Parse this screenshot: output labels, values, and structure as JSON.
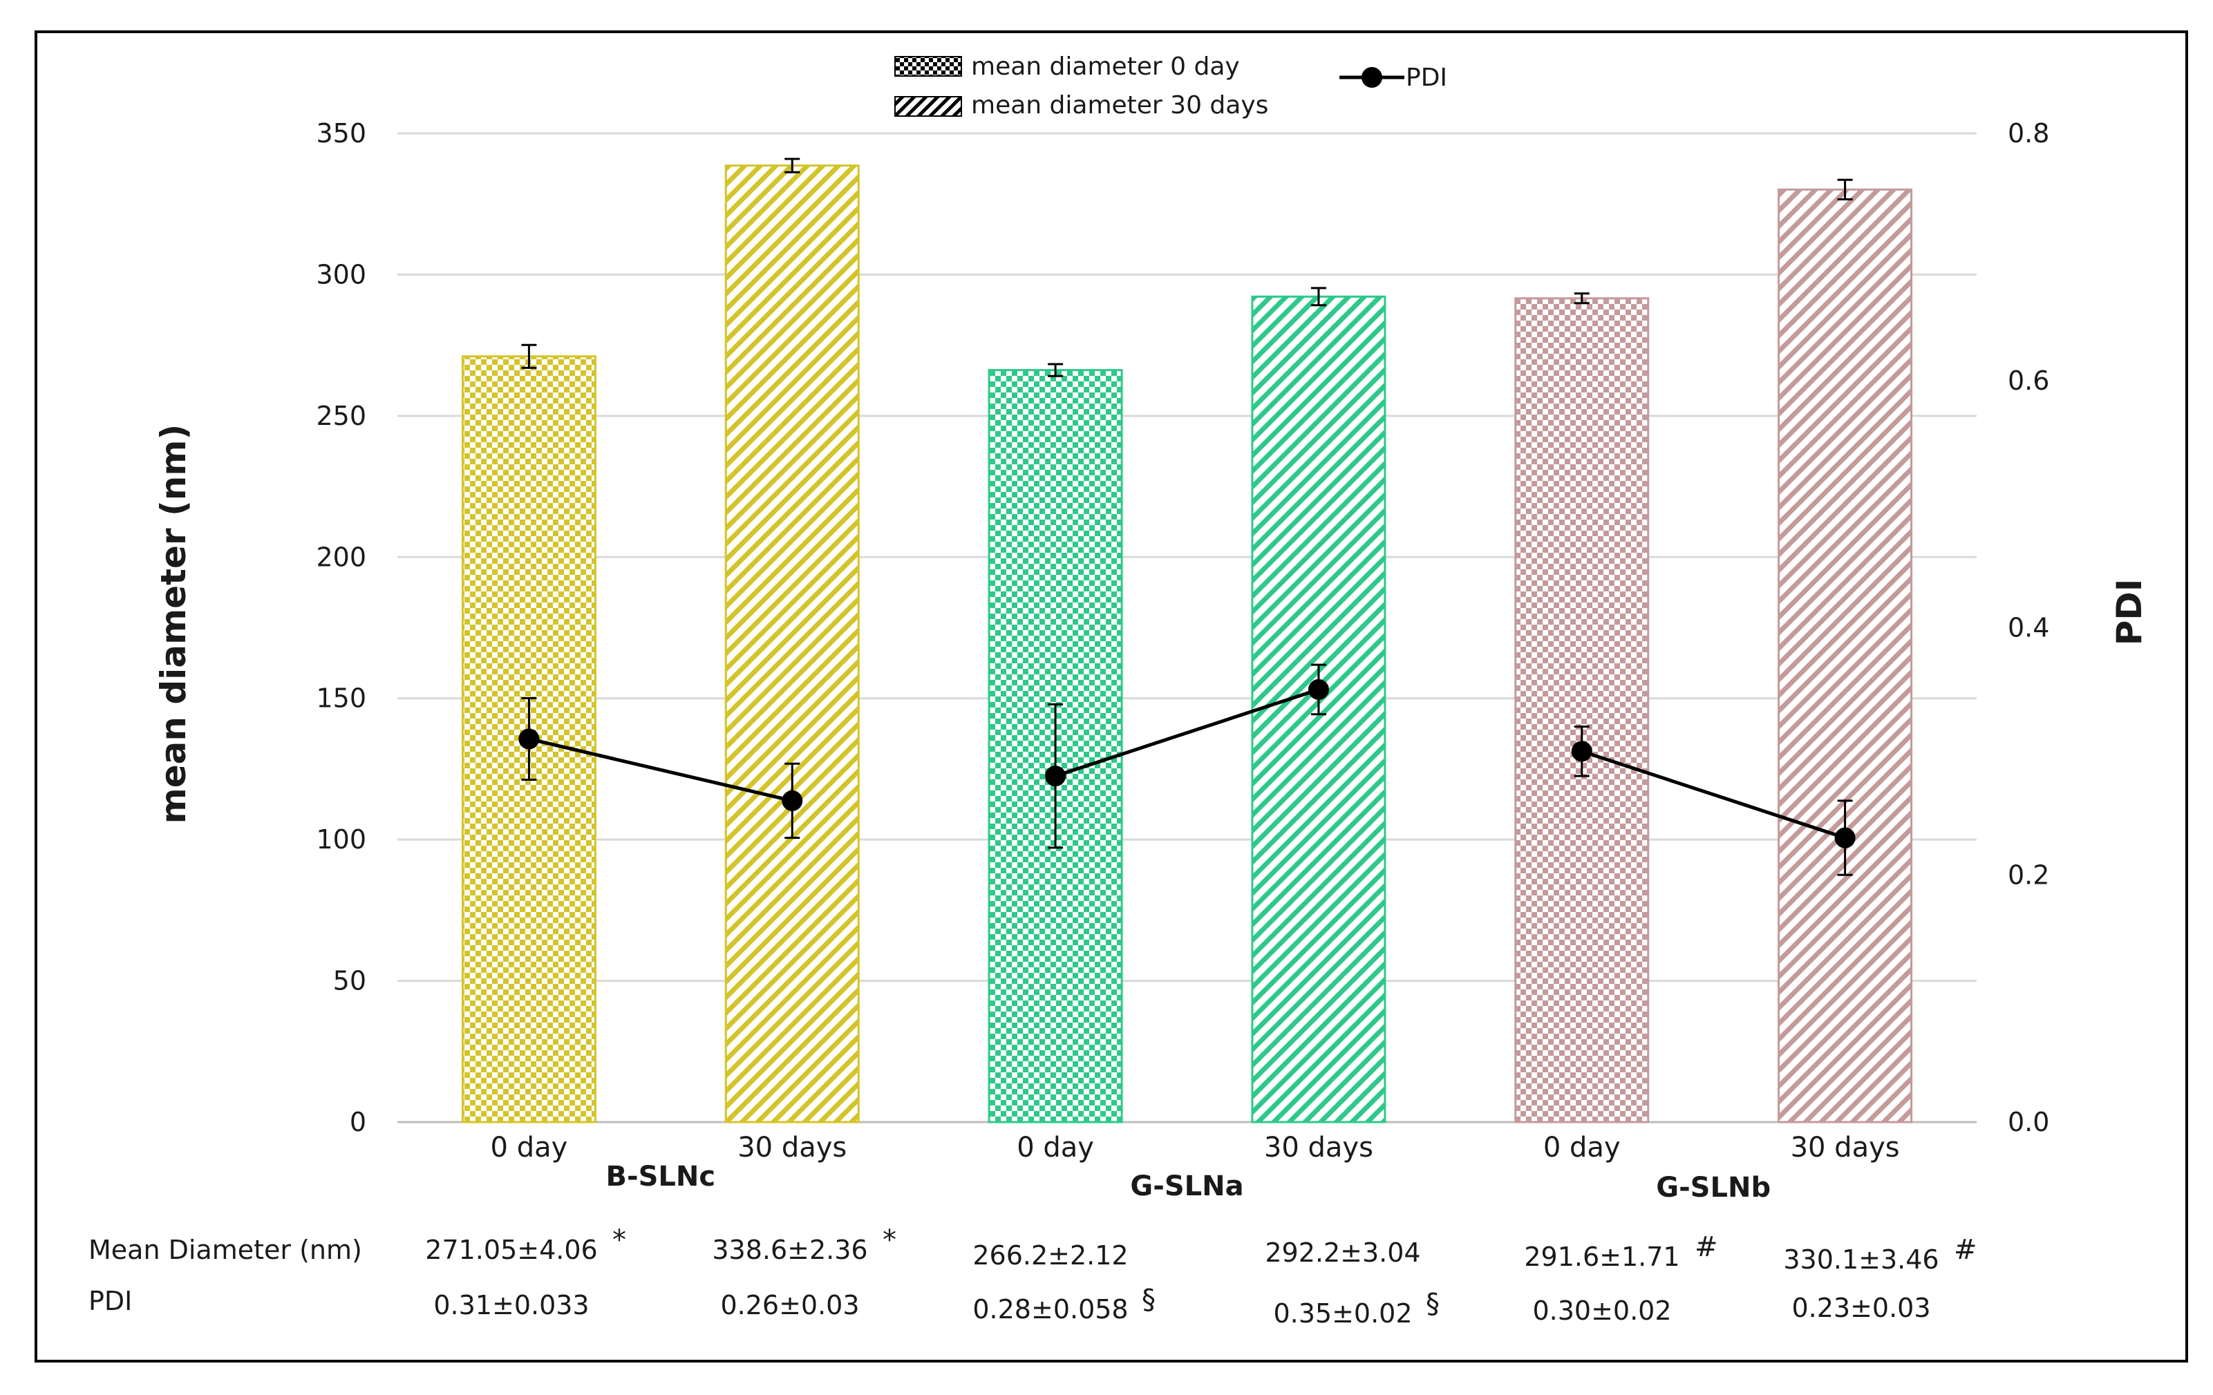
{
  "chart_data": {
    "type": "bar",
    "left_axis": {
      "label": "mean diameter (nm)",
      "ylim": [
        0,
        350
      ],
      "ticks": [
        "0",
        "50",
        "100",
        "150",
        "200",
        "250",
        "300",
        "350"
      ],
      "tick_values": [
        0,
        50,
        100,
        150,
        200,
        250,
        300,
        350
      ]
    },
    "right_axis": {
      "label": "PDI",
      "ylim": [
        0,
        0.8
      ],
      "ticks": [
        "0.0",
        "0.2",
        "0.4",
        "0.6",
        "0.8"
      ],
      "tick_values": [
        0,
        0.2,
        0.4,
        0.6,
        0.8
      ]
    },
    "grid": true,
    "legend_position": "top-center",
    "legend": {
      "bar_day0": "mean diameter 0 day",
      "bar_day30": "mean diameter 30 days",
      "line": "PDI"
    },
    "groups": [
      {
        "name": "B-SLNc",
        "color": "#d4c42a",
        "categories": [
          {
            "label": "0 day",
            "pattern": "checker",
            "diameter": 271.05,
            "diameter_err": 4.06,
            "pdi": 0.31,
            "pdi_err": 0.033,
            "diameter_text": "271.05±4.06",
            "diameter_mark": "*",
            "pdi_text": "0.31±0.033",
            "pdi_mark": ""
          },
          {
            "label": "30 days",
            "pattern": "diagonal",
            "diameter": 338.6,
            "diameter_err": 2.36,
            "pdi": 0.26,
            "pdi_err": 0.03,
            "diameter_text": "338.6±2.36",
            "diameter_mark": "*",
            "pdi_text": "0.26±0.03",
            "pdi_mark": ""
          }
        ]
      },
      {
        "name": "G-SLNa",
        "color": "#2ec98a",
        "categories": [
          {
            "label": "0 day",
            "pattern": "checker",
            "diameter": 266.2,
            "diameter_err": 2.12,
            "pdi": 0.28,
            "pdi_err": 0.058,
            "diameter_text": "266.2±2.12",
            "diameter_mark": "",
            "pdi_text": "0.28±0.058",
            "pdi_mark": "§"
          },
          {
            "label": "30 days",
            "pattern": "diagonal",
            "diameter": 292.2,
            "diameter_err": 3.04,
            "pdi": 0.35,
            "pdi_err": 0.02,
            "diameter_text": "292.2±3.04",
            "diameter_mark": "",
            "pdi_text": "0.35±0.02",
            "pdi_mark": "§"
          }
        ]
      },
      {
        "name": "G-SLNb",
        "color": "#c49a9a",
        "categories": [
          {
            "label": "0 day",
            "pattern": "checker",
            "diameter": 291.6,
            "diameter_err": 1.71,
            "pdi": 0.3,
            "pdi_err": 0.02,
            "diameter_text": "291.6±1.71",
            "diameter_mark": "#",
            "pdi_text": "0.30±0.02",
            "pdi_mark": ""
          },
          {
            "label": "30 days",
            "pattern": "diagonal",
            "diameter": 330.1,
            "diameter_err": 3.46,
            "pdi": 0.23,
            "pdi_err": 0.03,
            "diameter_text": "330.1±3.46",
            "diameter_mark": "#",
            "pdi_text": "0.23±0.03",
            "pdi_mark": ""
          }
        ]
      }
    ],
    "table": {
      "row_labels": [
        "Mean Diameter  (nm)",
        "PDI"
      ]
    }
  }
}
